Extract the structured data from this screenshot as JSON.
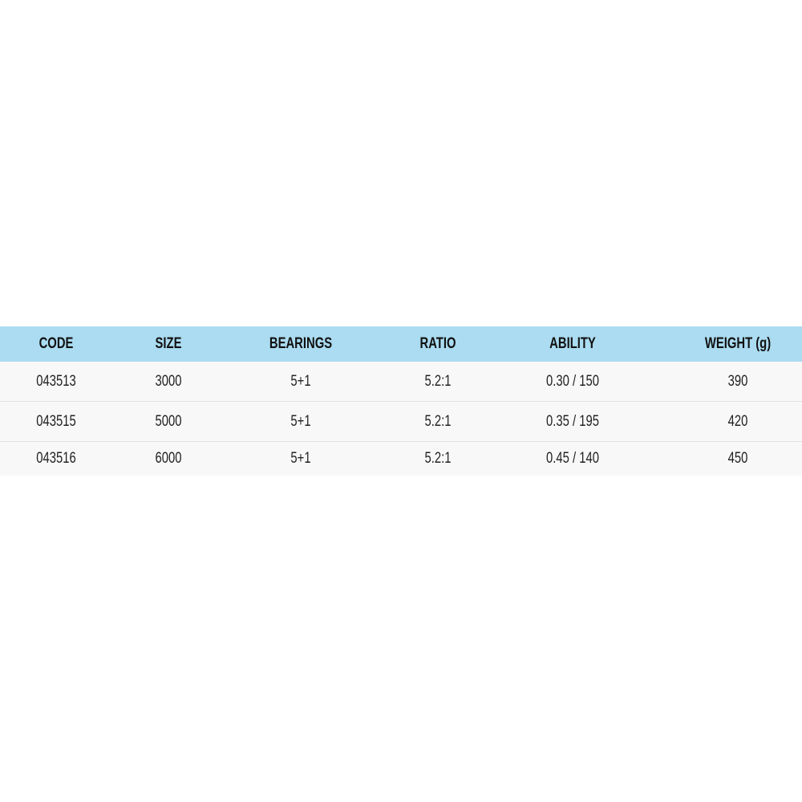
{
  "table": {
    "headers": [
      "CODE",
      "SIZE",
      "BEARINGS",
      "RATIO",
      "ABILITY",
      "WEIGHT (g)"
    ],
    "rows": [
      [
        "043513",
        "3000",
        "5+1",
        "5.2:1",
        "0.30 / 150",
        "390"
      ],
      [
        "043515",
        "5000",
        "5+1",
        "5.2:1",
        "0.35 / 195",
        "420"
      ],
      [
        "043516",
        "6000",
        "5+1",
        "5.2:1",
        "0.45 / 140",
        "450"
      ]
    ]
  },
  "colors": {
    "header_bg": "#abdcf1",
    "row_bg": "#f8f8f8"
  }
}
